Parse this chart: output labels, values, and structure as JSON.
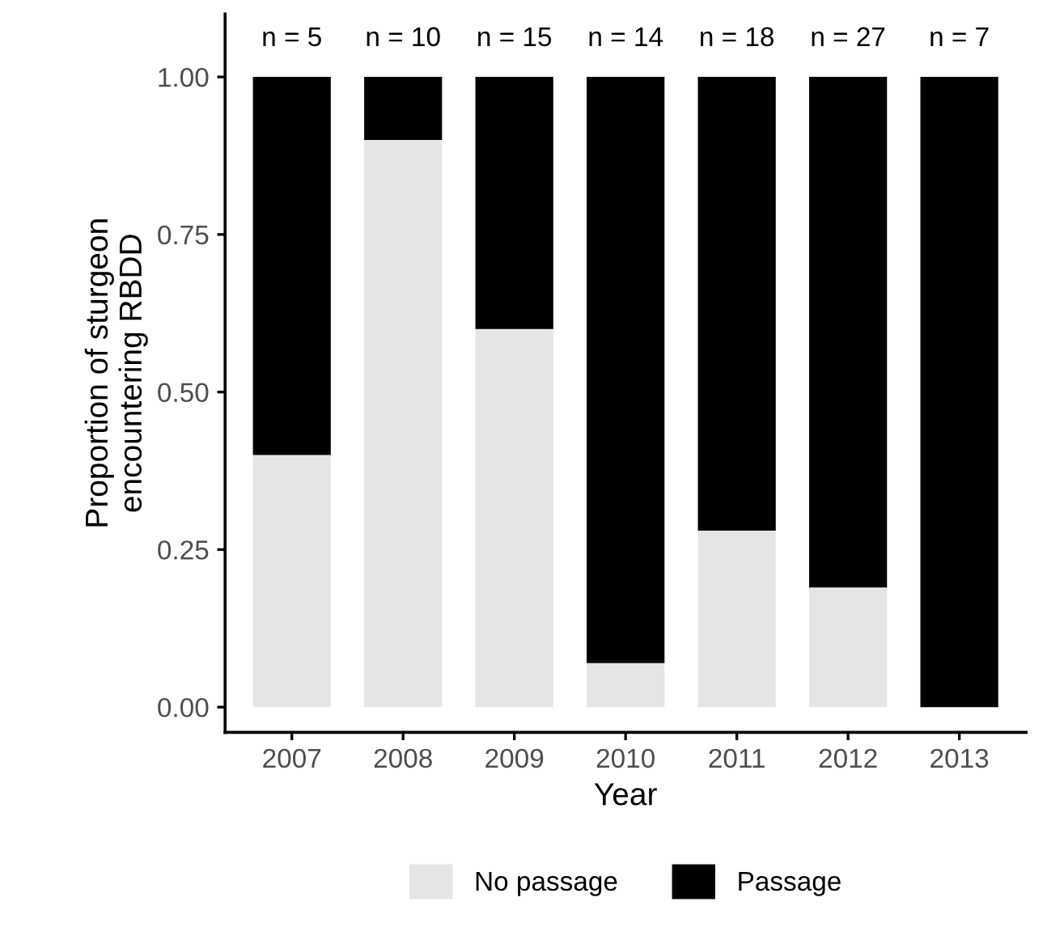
{
  "chart_data": {
    "type": "bar",
    "stacked": true,
    "xlabel": "Year",
    "ylabel": "Proportion of sturgeon\nencountering RBDD",
    "categories": [
      "2007",
      "2008",
      "2009",
      "2010",
      "2011",
      "2012",
      "2013"
    ],
    "series": [
      {
        "name": "No passage",
        "color": "#e5e5e5",
        "values": [
          0.4,
          0.9,
          0.6,
          0.07,
          0.28,
          0.19,
          0
        ]
      },
      {
        "name": "Passage",
        "color": "#000000",
        "values": [
          0.6,
          0.1,
          0.4,
          0.93,
          0.72,
          0.81,
          1
        ]
      }
    ],
    "ylim": [
      -0.04,
      1.1
    ],
    "yticks": [
      {
        "value": 0,
        "label": "0.00"
      },
      {
        "value": 0.25,
        "label": "0.25"
      },
      {
        "value": 0.5,
        "label": "0.50"
      },
      {
        "value": 0.75,
        "label": "0.75"
      },
      {
        "value": 1,
        "label": "1.00"
      }
    ],
    "annotations": [
      "n = 5",
      "n = 10",
      "n = 15",
      "n = 14",
      "n = 18",
      "n = 27",
      "n = 7"
    ],
    "grid": false,
    "legend": "bottom"
  }
}
